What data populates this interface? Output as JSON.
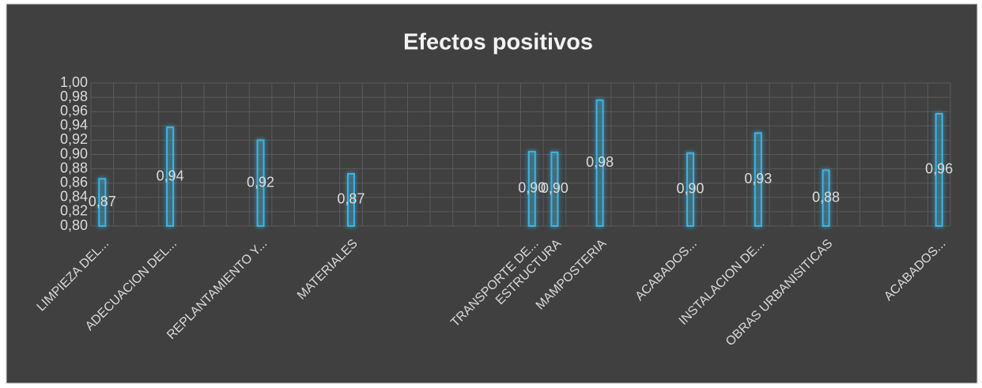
{
  "chart_data": {
    "type": "bar",
    "title": "Efectos positivos",
    "categories": [
      "LIMPIEZA DEL...",
      null,
      null,
      "ADECUACION DEL...",
      null,
      null,
      null,
      "REPLANTAMIENTO Y...",
      null,
      null,
      null,
      "MATERIALES",
      null,
      null,
      null,
      null,
      null,
      null,
      null,
      "TRANSPORTE DE...",
      "ESTRUCTURA",
      null,
      "MAMPOSTERIA",
      null,
      null,
      null,
      "ACABADOS...",
      null,
      null,
      "INSTALACION  DE...",
      null,
      null,
      "OBRAS URBANISITICAS",
      null,
      null,
      null,
      null,
      "ACABADOS..."
    ],
    "values": [
      0.866,
      null,
      null,
      0.938,
      null,
      null,
      null,
      0.92,
      null,
      null,
      null,
      0.873,
      null,
      null,
      null,
      null,
      null,
      null,
      null,
      0.904,
      0.903,
      null,
      0.976,
      null,
      null,
      null,
      0.902,
      null,
      null,
      0.93,
      null,
      null,
      0.878,
      null,
      null,
      null,
      null,
      0.957
    ],
    "value_labels": [
      "0,87",
      null,
      null,
      "0,94",
      null,
      null,
      null,
      "0,92",
      null,
      null,
      null,
      "0,87",
      null,
      null,
      null,
      null,
      null,
      null,
      null,
      "0,90",
      "0,90",
      null,
      "0,98",
      null,
      null,
      null,
      "0,90",
      null,
      null,
      "0,93",
      null,
      null,
      "0,88",
      null,
      null,
      null,
      null,
      "0,96"
    ],
    "color": "#3cb4e0",
    "ylim": [
      0.8,
      1.0
    ],
    "yticks": [
      {
        "value": 0.8,
        "label": "0,80"
      },
      {
        "value": 0.82,
        "label": "0,82"
      },
      {
        "value": 0.84,
        "label": "0,84"
      },
      {
        "value": 0.86,
        "label": "0,86"
      },
      {
        "value": 0.88,
        "label": "0,88"
      },
      {
        "value": 0.9,
        "label": "0,90"
      },
      {
        "value": 0.92,
        "label": "0,92"
      },
      {
        "value": 0.94,
        "label": "0,94"
      },
      {
        "value": 0.96,
        "label": "0,96"
      },
      {
        "value": 0.98,
        "label": "0,98"
      },
      {
        "value": 1.0,
        "label": "1,00"
      }
    ],
    "grid": true
  }
}
